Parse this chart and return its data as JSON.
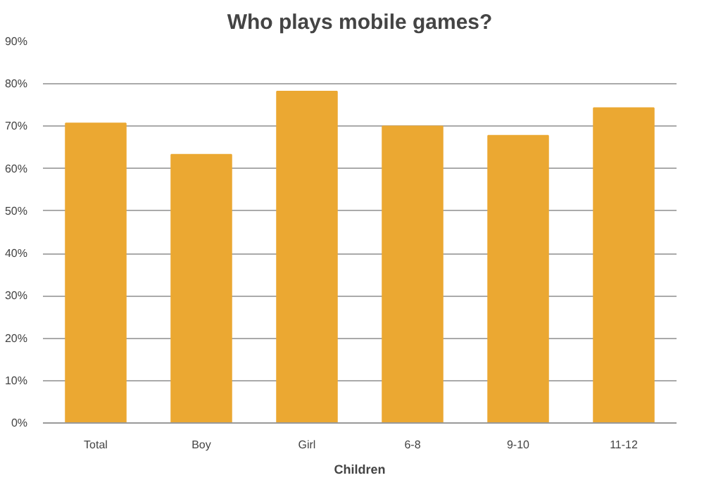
{
  "chart_data": {
    "type": "bar",
    "title": "Who plays mobile games?",
    "xlabel": "Children",
    "categories": [
      "Total",
      "Boy",
      "Girl",
      "6-8",
      "9-10",
      "11-12"
    ],
    "values": [
      70.7,
      63.3,
      78.2,
      70.0,
      67.8,
      74.3
    ],
    "color": "#eba832",
    "ylim": [
      0,
      90
    ],
    "yticks": [
      {
        "value": 0,
        "label": "0%"
      },
      {
        "value": 10,
        "label": "10%"
      },
      {
        "value": 20,
        "label": "20%"
      },
      {
        "value": 30,
        "label": "30%"
      },
      {
        "value": 40,
        "label": "40%"
      },
      {
        "value": 50,
        "label": "50%"
      },
      {
        "value": 60,
        "label": "60%"
      },
      {
        "value": 70,
        "label": "70%"
      },
      {
        "value": 80,
        "label": "80%"
      },
      {
        "value": 90,
        "label": "90%"
      }
    ],
    "grid": "y"
  }
}
